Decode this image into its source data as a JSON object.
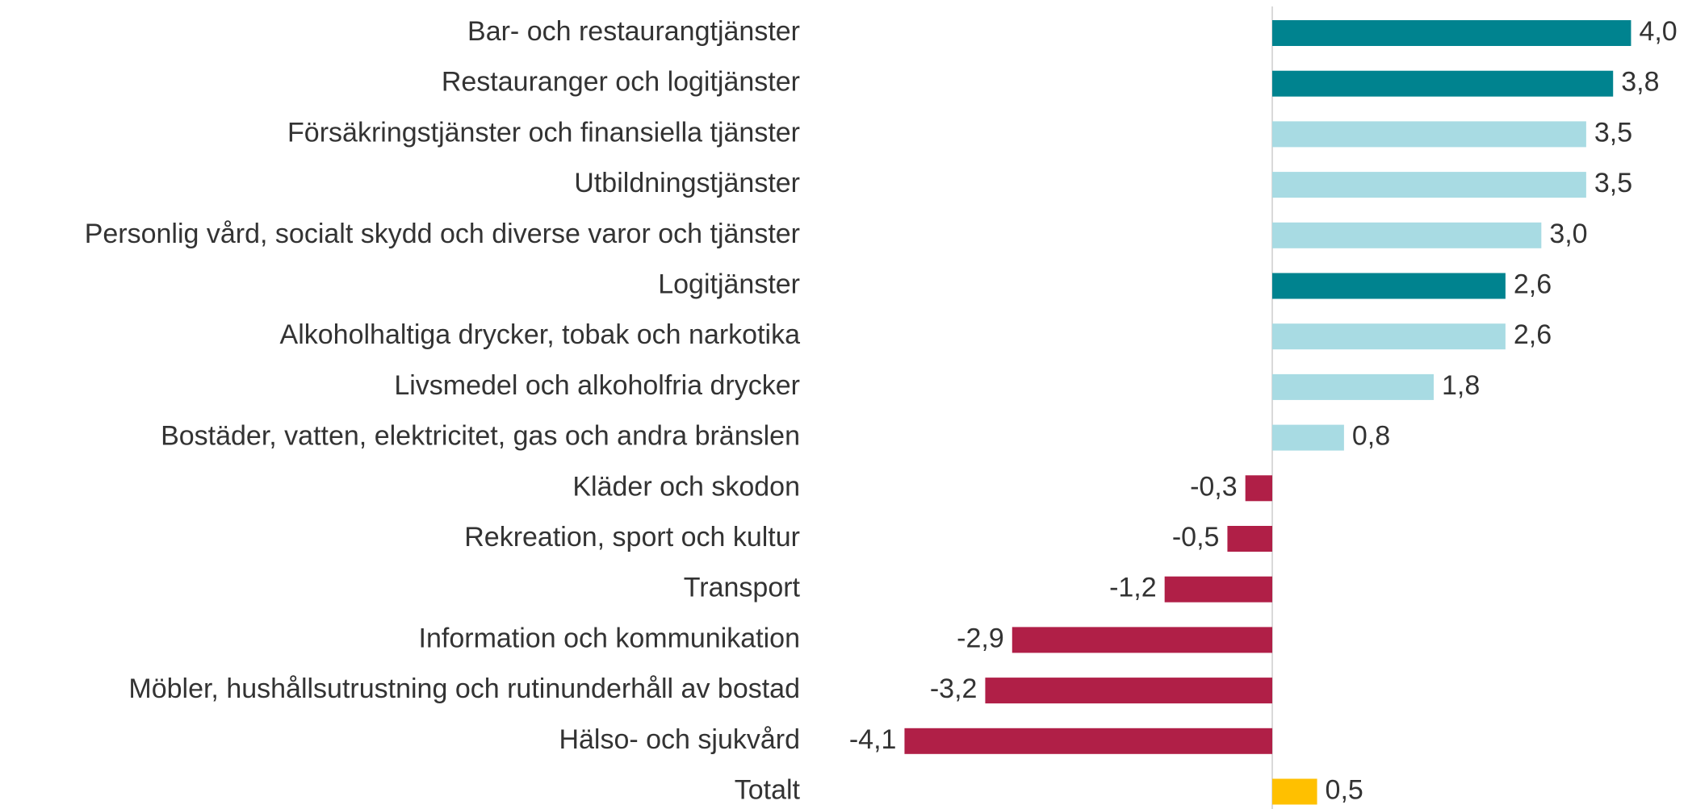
{
  "chart_data": {
    "type": "barh",
    "categories": [
      "Bar- och restaurangtjänster",
      "Restauranger och logitjänster",
      "Försäkringstjänster och finansiella tjänster",
      "Utbildningstjänster",
      "Personlig vård, socialt skydd och diverse varor och tjänster",
      "Logitjänster",
      "Alkoholhaltiga drycker, tobak och narkotika",
      "Livsmedel och alkoholfria drycker",
      "Bostäder, vatten, elektricitet, gas och andra bränslen",
      "Kläder och skodon",
      "Rekreation, sport och kultur",
      "Transport",
      "Information och kommunikation",
      "Möbler, hushållsutrustning och rutinunderhåll av bostad",
      "Hälso- och sjukvård",
      "Totalt"
    ],
    "values": [
      4.0,
      3.8,
      3.5,
      3.5,
      3.0,
      2.6,
      2.6,
      1.8,
      0.8,
      -0.3,
      -0.5,
      -1.2,
      -2.9,
      -3.2,
      -4.1,
      0.5
    ],
    "value_labels": [
      "4,0",
      "3,8",
      "3,5",
      "3,5",
      "3,0",
      "2,6",
      "2,6",
      "1,8",
      "0,8",
      "-0,3",
      "-0,5",
      "-1,2",
      "-2,9",
      "-3,2",
      "-4,1",
      "0,5"
    ],
    "colors": [
      "#00838f",
      "#00838f",
      "#a8dbe3",
      "#a8dbe3",
      "#a8dbe3",
      "#00838f",
      "#a8dbe3",
      "#a8dbe3",
      "#a8dbe3",
      "#b01f47",
      "#b01f47",
      "#b01f47",
      "#b01f47",
      "#b01f47",
      "#b01f47",
      "#ffc000"
    ],
    "xlim": [
      -4.5,
      4.5
    ]
  }
}
